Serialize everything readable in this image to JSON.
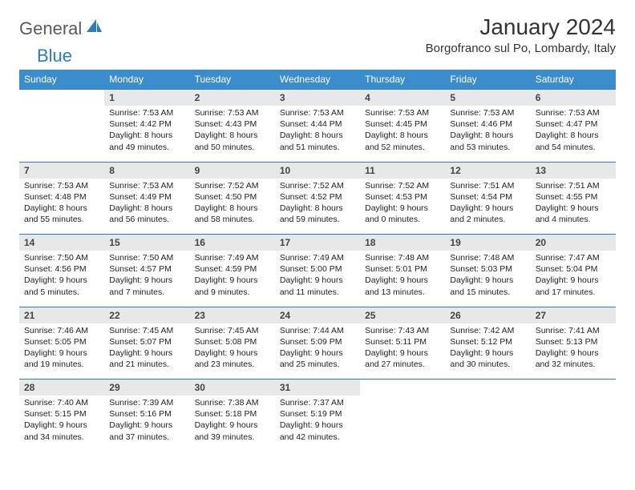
{
  "logo": {
    "text1": "General",
    "text2": "Blue"
  },
  "title": "January 2024",
  "subtitle": "Borgofranco sul Po, Lombardy, Italy",
  "colors": {
    "header_bg": "#3b8ccc",
    "num_bg": "#e8e8e8",
    "row_border": "#2b7cc4",
    "logo_gray": "#5a5a5a",
    "logo_blue": "#2b7cc4"
  },
  "weekdays": [
    "Sunday",
    "Monday",
    "Tuesday",
    "Wednesday",
    "Thursday",
    "Friday",
    "Saturday"
  ],
  "weeks": [
    {
      "nums": [
        "",
        "1",
        "2",
        "3",
        "4",
        "5",
        "6"
      ],
      "cells": [
        "",
        "Sunrise: 7:53 AM\nSunset: 4:42 PM\nDaylight: 8 hours and 49 minutes.",
        "Sunrise: 7:53 AM\nSunset: 4:43 PM\nDaylight: 8 hours and 50 minutes.",
        "Sunrise: 7:53 AM\nSunset: 4:44 PM\nDaylight: 8 hours and 51 minutes.",
        "Sunrise: 7:53 AM\nSunset: 4:45 PM\nDaylight: 8 hours and 52 minutes.",
        "Sunrise: 7:53 AM\nSunset: 4:46 PM\nDaylight: 8 hours and 53 minutes.",
        "Sunrise: 7:53 AM\nSunset: 4:47 PM\nDaylight: 8 hours and 54 minutes."
      ]
    },
    {
      "nums": [
        "7",
        "8",
        "9",
        "10",
        "11",
        "12",
        "13"
      ],
      "cells": [
        "Sunrise: 7:53 AM\nSunset: 4:48 PM\nDaylight: 8 hours and 55 minutes.",
        "Sunrise: 7:53 AM\nSunset: 4:49 PM\nDaylight: 8 hours and 56 minutes.",
        "Sunrise: 7:52 AM\nSunset: 4:50 PM\nDaylight: 8 hours and 58 minutes.",
        "Sunrise: 7:52 AM\nSunset: 4:52 PM\nDaylight: 8 hours and 59 minutes.",
        "Sunrise: 7:52 AM\nSunset: 4:53 PM\nDaylight: 9 hours and 0 minutes.",
        "Sunrise: 7:51 AM\nSunset: 4:54 PM\nDaylight: 9 hours and 2 minutes.",
        "Sunrise: 7:51 AM\nSunset: 4:55 PM\nDaylight: 9 hours and 4 minutes."
      ]
    },
    {
      "nums": [
        "14",
        "15",
        "16",
        "17",
        "18",
        "19",
        "20"
      ],
      "cells": [
        "Sunrise: 7:50 AM\nSunset: 4:56 PM\nDaylight: 9 hours and 5 minutes.",
        "Sunrise: 7:50 AM\nSunset: 4:57 PM\nDaylight: 9 hours and 7 minutes.",
        "Sunrise: 7:49 AM\nSunset: 4:59 PM\nDaylight: 9 hours and 9 minutes.",
        "Sunrise: 7:49 AM\nSunset: 5:00 PM\nDaylight: 9 hours and 11 minutes.",
        "Sunrise: 7:48 AM\nSunset: 5:01 PM\nDaylight: 9 hours and 13 minutes.",
        "Sunrise: 7:48 AM\nSunset: 5:03 PM\nDaylight: 9 hours and 15 minutes.",
        "Sunrise: 7:47 AM\nSunset: 5:04 PM\nDaylight: 9 hours and 17 minutes."
      ]
    },
    {
      "nums": [
        "21",
        "22",
        "23",
        "24",
        "25",
        "26",
        "27"
      ],
      "cells": [
        "Sunrise: 7:46 AM\nSunset: 5:05 PM\nDaylight: 9 hours and 19 minutes.",
        "Sunrise: 7:45 AM\nSunset: 5:07 PM\nDaylight: 9 hours and 21 minutes.",
        "Sunrise: 7:45 AM\nSunset: 5:08 PM\nDaylight: 9 hours and 23 minutes.",
        "Sunrise: 7:44 AM\nSunset: 5:09 PM\nDaylight: 9 hours and 25 minutes.",
        "Sunrise: 7:43 AM\nSunset: 5:11 PM\nDaylight: 9 hours and 27 minutes.",
        "Sunrise: 7:42 AM\nSunset: 5:12 PM\nDaylight: 9 hours and 30 minutes.",
        "Sunrise: 7:41 AM\nSunset: 5:13 PM\nDaylight: 9 hours and 32 minutes."
      ]
    },
    {
      "nums": [
        "28",
        "29",
        "30",
        "31",
        "",
        "",
        ""
      ],
      "cells": [
        "Sunrise: 7:40 AM\nSunset: 5:15 PM\nDaylight: 9 hours and 34 minutes.",
        "Sunrise: 7:39 AM\nSunset: 5:16 PM\nDaylight: 9 hours and 37 minutes.",
        "Sunrise: 7:38 AM\nSunset: 5:18 PM\nDaylight: 9 hours and 39 minutes.",
        "Sunrise: 7:37 AM\nSunset: 5:19 PM\nDaylight: 9 hours and 42 minutes.",
        "",
        "",
        ""
      ]
    }
  ]
}
